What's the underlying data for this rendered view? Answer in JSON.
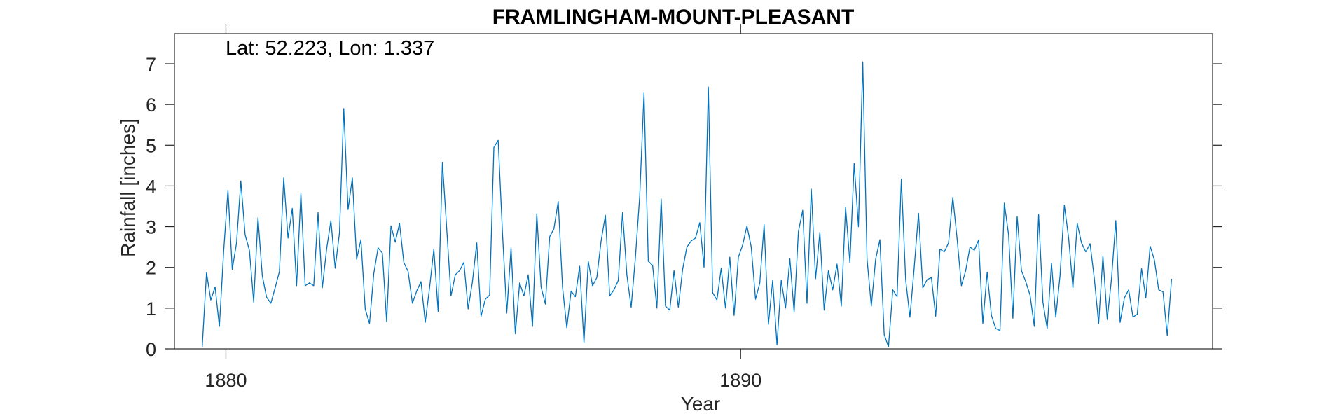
{
  "chart_data": {
    "type": "line",
    "title": "FRAMLINGHAM-MOUNT-PLEASANT",
    "xlabel": "Year",
    "ylabel": "Rainfall [inches]",
    "annotation": "Lat: 52.223, Lon: 1.337",
    "xlim": [
      1879.0,
      1899.17
    ],
    "ylim": [
      0,
      7.8
    ],
    "x_ticks": [
      1880,
      1890
    ],
    "x_tick_labels": [
      "1880",
      "1890"
    ],
    "y_ticks": [
      0,
      1,
      2,
      3,
      4,
      5,
      6,
      7
    ],
    "y_tick_labels": [
      "0",
      "1",
      "2",
      "3",
      "4",
      "5",
      "6",
      "7"
    ],
    "grid": false,
    "line_color": "#0072BD",
    "x_start": 1879.54,
    "x_step": 0.08333,
    "series": [
      {
        "name": "",
        "values": [
          0.05,
          1.87,
          1.2,
          1.52,
          0.55,
          2.4,
          3.9,
          1.95,
          2.6,
          4.12,
          2.8,
          2.42,
          1.15,
          3.22,
          1.8,
          1.27,
          1.12,
          1.5,
          1.9,
          4.2,
          2.72,
          3.45,
          1.55,
          3.82,
          1.55,
          1.62,
          1.55,
          3.35,
          1.5,
          2.45,
          3.15,
          1.98,
          2.85,
          5.9,
          3.42,
          4.2,
          2.2,
          2.68,
          0.98,
          0.62,
          1.85,
          2.48,
          2.35,
          0.67,
          3.02,
          2.62,
          3.08,
          2.12,
          1.9,
          1.12,
          1.42,
          1.65,
          0.65,
          1.5,
          2.45,
          0.92,
          4.58,
          2.95,
          1.3,
          1.82,
          1.92,
          2.12,
          0.98,
          1.65,
          2.6,
          0.8,
          1.22,
          1.32,
          4.95,
          5.12,
          2.85,
          0.88,
          2.48,
          0.37,
          1.62,
          1.3,
          1.82,
          0.55,
          3.32,
          1.52,
          1.1,
          2.75,
          2.95,
          3.62,
          1.52,
          0.52,
          1.42,
          1.28,
          2.03,
          0.15,
          2.15,
          1.55,
          1.75,
          2.65,
          3.28,
          1.3,
          1.45,
          1.68,
          3.35,
          1.82,
          1.02,
          2.25,
          3.75,
          6.28,
          2.15,
          2.05,
          1.0,
          3.68,
          1.05,
          0.95,
          1.92,
          1.02,
          1.95,
          2.5,
          2.65,
          2.72,
          3.1,
          2.0,
          6.43,
          1.38,
          1.2,
          1.98,
          1.0,
          2.25,
          0.82,
          2.25,
          2.55,
          3.02,
          2.5,
          1.22,
          1.62,
          3.05,
          0.6,
          1.68,
          0.1,
          1.68,
          1.0,
          2.22,
          0.9,
          2.88,
          3.4,
          1.12,
          3.92,
          1.72,
          2.86,
          0.95,
          1.92,
          1.45,
          2.08,
          1.05,
          3.48,
          2.12,
          4.55,
          3.0,
          7.05,
          2.2,
          1.05,
          2.2,
          2.68,
          0.35,
          0.05,
          1.45,
          1.28,
          4.17,
          1.7,
          0.78,
          2.0,
          3.33,
          1.5,
          1.7,
          1.75,
          0.8,
          2.45,
          2.38,
          2.6,
          3.72,
          2.7,
          1.55,
          1.92,
          2.5,
          2.42,
          2.67,
          0.62,
          1.88,
          0.82,
          0.5,
          0.45,
          3.58,
          2.8,
          0.75,
          3.25,
          1.92,
          1.65,
          1.32,
          0.55,
          3.3,
          1.15,
          0.5,
          2.1,
          0.78,
          1.8,
          3.53,
          2.72,
          1.5,
          3.08,
          2.6,
          2.38,
          2.58,
          1.72,
          0.62,
          2.28,
          0.72,
          1.72,
          3.15,
          0.65,
          1.25,
          1.45,
          0.78,
          0.85,
          1.97,
          1.25,
          2.52,
          2.18,
          1.45,
          1.4,
          0.32,
          1.72
        ]
      }
    ]
  }
}
